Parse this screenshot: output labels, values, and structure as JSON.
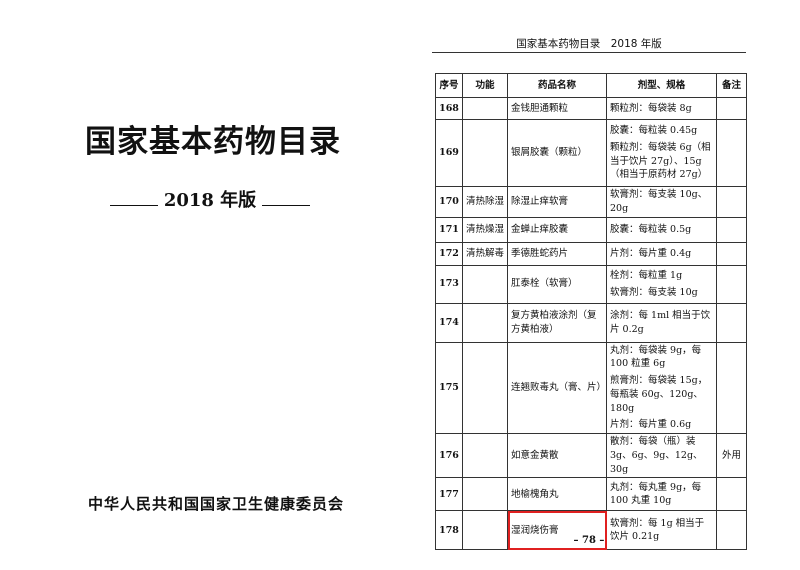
{
  "cover": {
    "title": "国家基本药物目录",
    "edition": "2018 年版",
    "publisher": "中华人民共和国国家卫生健康委员会"
  },
  "page": {
    "running_header": "国家基本药物目录　2018 年版",
    "page_number": "– 78 –"
  },
  "table": {
    "headers": [
      "序号",
      "功能",
      "药品名称",
      "剂型、规格",
      "备注"
    ],
    "rows": [
      {
        "no": "168",
        "func": "",
        "name": "金钱胆通颗粒",
        "spec": [
          "颗粒剂：每袋装 8g"
        ],
        "note": ""
      },
      {
        "no": "169",
        "func": "",
        "name": "银屑胶囊（颗粒）",
        "spec": [
          "胶囊：每粒装 0.45g",
          "颗粒剂：每袋装 6g（相当于饮片 27g）、15g（相当于原药材 27g）"
        ],
        "note": ""
      },
      {
        "no": "170",
        "func": "清热除湿",
        "name": "除湿止痒软膏",
        "spec": [
          "软膏剂：每支装 10g、20g"
        ],
        "note": ""
      },
      {
        "no": "171",
        "func": "清热燥湿",
        "name": "金蝉止痒胶囊",
        "spec": [
          "胶囊：每粒装 0.5g"
        ],
        "note": ""
      },
      {
        "no": "172",
        "func": "清热解毒",
        "name": "季德胜蛇药片",
        "spec": [
          "片剂：每片重 0.4g"
        ],
        "note": ""
      },
      {
        "no": "173",
        "func": "",
        "name": "肛泰栓（软膏）",
        "spec": [
          "栓剂：每粒重 1g",
          "软膏剂：每支装 10g"
        ],
        "note": ""
      },
      {
        "no": "174",
        "func": "",
        "name": "复方黄柏液涂剂（复方黄柏液）",
        "spec": [
          "涂剂：每 1ml 相当于饮片 0.2g"
        ],
        "note": ""
      },
      {
        "no": "175",
        "func": "",
        "name": "连翘败毒丸（膏、片）",
        "spec": [
          "丸剂：每袋装 9g，每 100 粒重 6g",
          "煎膏剂：每袋装 15g，每瓶装 60g、120g、180g",
          "片剂：每片重 0.6g"
        ],
        "note": ""
      },
      {
        "no": "176",
        "func": "",
        "name": "如意金黄散",
        "spec": [
          "散剂：每袋（瓶）装 3g、6g、9g、12g、30g"
        ],
        "note": "外用"
      },
      {
        "no": "177",
        "func": "",
        "name": "地榆槐角丸",
        "spec": [
          "丸剂：每丸重 9g，每 100 丸重 10g"
        ],
        "note": ""
      },
      {
        "no": "178",
        "func": "",
        "name": "湿润烧伤膏",
        "spec": [
          "软膏剂：每 1g 相当于饮片 0.21g"
        ],
        "note": "",
        "highlighted": true
      }
    ]
  },
  "colors": {
    "highlight": "#e02020"
  }
}
